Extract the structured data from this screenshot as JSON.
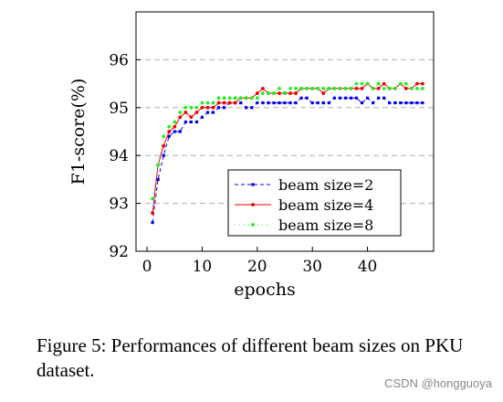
{
  "caption": "Figure 5: Performances of different beam sizes on PKU dataset.",
  "watermark": "CSDN @hongguoya",
  "chart_data": {
    "type": "line",
    "xlabel": "epochs",
    "ylabel": "F1-score(%)",
    "xlim": [
      -2,
      52
    ],
    "ylim": [
      92,
      97
    ],
    "xticks": [
      0,
      10,
      20,
      30,
      40
    ],
    "yticks": [
      92,
      93,
      94,
      95,
      96
    ],
    "grid": "horizontal-dashed",
    "legend_position": "lower-right",
    "x": [
      1,
      2,
      3,
      4,
      5,
      6,
      7,
      8,
      9,
      10,
      11,
      12,
      13,
      14,
      15,
      16,
      17,
      18,
      19,
      20,
      21,
      22,
      23,
      24,
      25,
      26,
      27,
      28,
      29,
      30,
      31,
      32,
      33,
      34,
      35,
      36,
      37,
      38,
      39,
      40,
      41,
      42,
      43,
      44,
      45,
      46,
      47,
      48,
      49,
      50
    ],
    "series": [
      {
        "name": "beam size=2",
        "color": "#0000ee",
        "dash": "4,3",
        "marker": "square",
        "values": [
          92.6,
          93.5,
          94.0,
          94.4,
          94.5,
          94.5,
          94.7,
          94.7,
          94.7,
          94.8,
          94.9,
          94.9,
          95.0,
          95.0,
          95.1,
          95.1,
          95.1,
          95.0,
          95.0,
          95.1,
          95.1,
          95.1,
          95.1,
          95.1,
          95.1,
          95.1,
          95.1,
          95.2,
          95.2,
          95.1,
          95.1,
          95.1,
          95.1,
          95.2,
          95.2,
          95.2,
          95.2,
          95.2,
          95.1,
          95.2,
          95.1,
          95.2,
          95.2,
          95.1,
          95.1,
          95.1,
          95.1,
          95.1,
          95.1,
          95.1
        ]
      },
      {
        "name": "beam size=4",
        "color": "#ee0000",
        "dash": "",
        "marker": "circle",
        "values": [
          92.8,
          93.8,
          94.2,
          94.5,
          94.6,
          94.8,
          94.9,
          94.8,
          94.9,
          95.0,
          95.0,
          95.0,
          95.1,
          95.1,
          95.1,
          95.1,
          95.2,
          95.2,
          95.2,
          95.3,
          95.4,
          95.3,
          95.3,
          95.3,
          95.3,
          95.3,
          95.3,
          95.4,
          95.4,
          95.4,
          95.4,
          95.3,
          95.4,
          95.4,
          95.4,
          95.4,
          95.4,
          95.4,
          95.4,
          95.5,
          95.4,
          95.4,
          95.5,
          95.4,
          95.4,
          95.5,
          95.4,
          95.4,
          95.5,
          95.5
        ]
      },
      {
        "name": "beam size=8",
        "color": "#22ee22",
        "dash": "1,4",
        "marker": "circle",
        "values": [
          93.1,
          93.8,
          94.4,
          94.6,
          94.7,
          94.9,
          95.0,
          95.0,
          95.0,
          95.1,
          95.1,
          95.1,
          95.2,
          95.2,
          95.2,
          95.2,
          95.2,
          95.2,
          95.2,
          95.2,
          95.3,
          95.3,
          95.3,
          95.4,
          95.3,
          95.4,
          95.4,
          95.4,
          95.4,
          95.4,
          95.4,
          95.4,
          95.4,
          95.4,
          95.4,
          95.4,
          95.4,
          95.5,
          95.5,
          95.5,
          95.4,
          95.5,
          95.4,
          95.4,
          95.4,
          95.5,
          95.5,
          95.4,
          95.4,
          95.4
        ]
      }
    ]
  }
}
